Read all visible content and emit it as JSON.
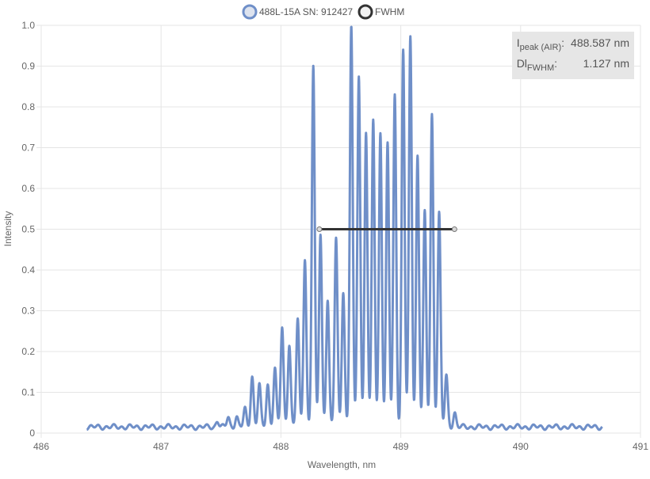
{
  "chart_data": {
    "type": "line",
    "title": "",
    "xlabel": "Wavelength, nm",
    "ylabel": "Intensity",
    "xlim": [
      486,
      491
    ],
    "ylim": [
      0,
      1
    ],
    "x_ticks": [
      "486",
      "487",
      "488",
      "489",
      "490",
      "491"
    ],
    "y_ticks": [
      "0",
      "0.1",
      "0.2",
      "0.3",
      "0.4",
      "0.5",
      "0.6",
      "0.7",
      "0.8",
      "0.9",
      "1.0"
    ],
    "grid": true,
    "legend_position": "top-center",
    "series": [
      {
        "name": "488L-15A SN: 912427",
        "color": "#6f8fc8",
        "baseline": 0.015,
        "x_start": 486.38,
        "x_end": 490.68,
        "peak_width": 0.012,
        "peaks": [
          {
            "x": 487.47,
            "y": 0.03
          },
          {
            "x": 487.56,
            "y": 0.04
          },
          {
            "x": 487.63,
            "y": 0.04
          },
          {
            "x": 487.7,
            "y": 0.06
          },
          {
            "x": 487.76,
            "y": 0.14
          },
          {
            "x": 487.82,
            "y": 0.12
          },
          {
            "x": 487.89,
            "y": 0.12
          },
          {
            "x": 487.95,
            "y": 0.16
          },
          {
            "x": 488.01,
            "y": 0.26
          },
          {
            "x": 488.07,
            "y": 0.22
          },
          {
            "x": 488.14,
            "y": 0.28
          },
          {
            "x": 488.2,
            "y": 0.43
          },
          {
            "x": 488.27,
            "y": 0.9
          },
          {
            "x": 488.33,
            "y": 0.49
          },
          {
            "x": 488.39,
            "y": 0.33
          },
          {
            "x": 488.46,
            "y": 0.48
          },
          {
            "x": 488.52,
            "y": 0.35
          },
          {
            "x": 488.587,
            "y": 1.0
          },
          {
            "x": 488.65,
            "y": 0.88
          },
          {
            "x": 488.71,
            "y": 0.74
          },
          {
            "x": 488.77,
            "y": 0.77
          },
          {
            "x": 488.83,
            "y": 0.74
          },
          {
            "x": 488.89,
            "y": 0.71
          },
          {
            "x": 488.95,
            "y": 0.83
          },
          {
            "x": 489.02,
            "y": 0.94
          },
          {
            "x": 489.08,
            "y": 0.97
          },
          {
            "x": 489.14,
            "y": 0.68
          },
          {
            "x": 489.2,
            "y": 0.54
          },
          {
            "x": 489.26,
            "y": 0.78
          },
          {
            "x": 489.32,
            "y": 0.54
          },
          {
            "x": 489.38,
            "y": 0.14
          },
          {
            "x": 489.45,
            "y": 0.05
          }
        ]
      },
      {
        "name": "FWHM",
        "color": "#333333",
        "x": [
          488.321,
          489.448
        ],
        "y": [
          0.5,
          0.5
        ]
      }
    ],
    "annotations": [
      {
        "label_main": "I",
        "label_sub": "peak (AIR)",
        "value": "488.587 nm"
      },
      {
        "label_main": "Dl",
        "label_sub": "FWHM",
        "value": "1.127 nm"
      }
    ]
  }
}
